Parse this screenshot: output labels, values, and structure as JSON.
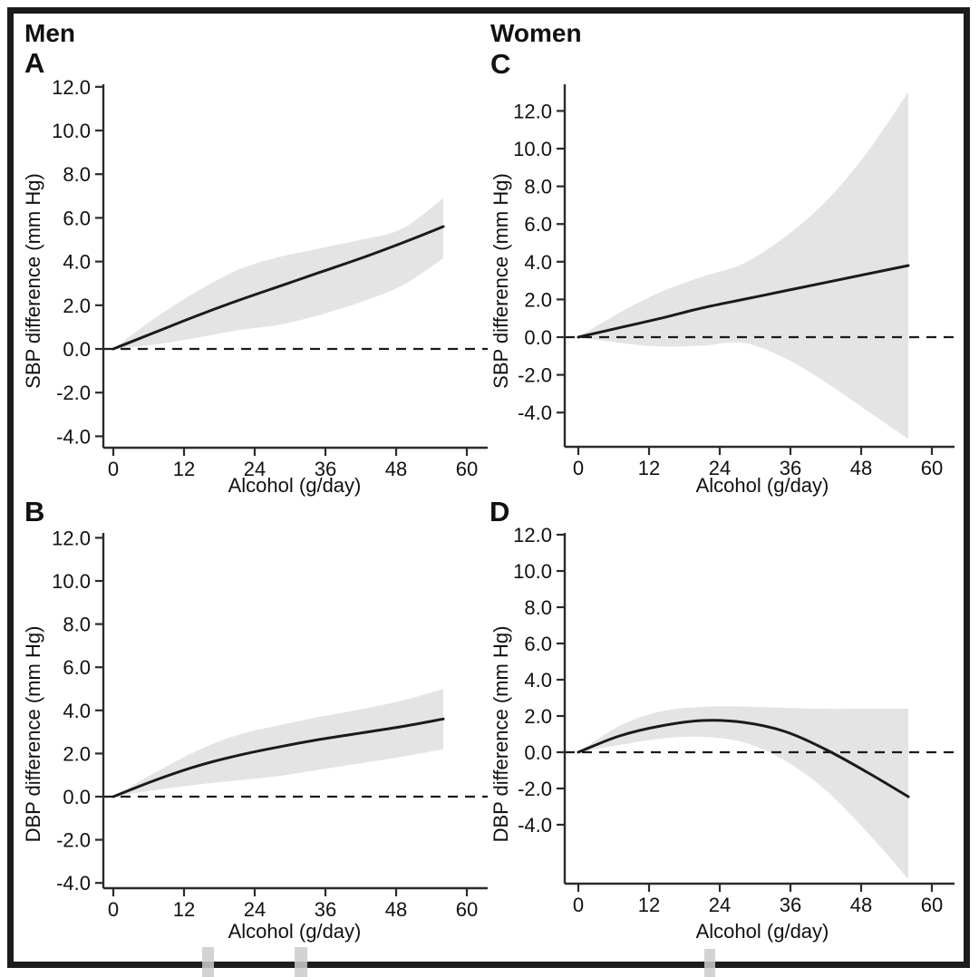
{
  "header": {
    "left": "Men",
    "right": "Women"
  },
  "colors": {
    "curve": "#1a1a1a",
    "band": "#e4e4e4",
    "axis": "#2b2b2b",
    "text": "#111111",
    "border": "#1c1c1c",
    "artifact_mark": "#cbcbcb"
  },
  "chart_data": [
    {
      "panel": "A",
      "group": "Men",
      "type": "line",
      "position": "top-left",
      "xlabel": "Alcohol (g/day)",
      "ylabel": "SBP difference (mm Hg)",
      "x": [
        0,
        7,
        14,
        21,
        28,
        35,
        42,
        49,
        56
      ],
      "line": [
        0,
        0.75,
        1.5,
        2.2,
        2.85,
        3.5,
        4.15,
        4.85,
        5.6
      ],
      "ci_upper": [
        0,
        1.4,
        2.6,
        3.6,
        4.2,
        4.6,
        5.0,
        5.5,
        6.9
      ],
      "ci_lower": [
        0,
        0.2,
        0.5,
        0.85,
        1.1,
        1.55,
        2.15,
        2.9,
        4.15
      ],
      "xtick_values": [
        0,
        12,
        24,
        36,
        48,
        60
      ],
      "xtick_labels": [
        "0",
        "12",
        "24",
        "36",
        "48",
        "60"
      ],
      "ytick_values": [
        12,
        10,
        8,
        6,
        4,
        2,
        0,
        -2,
        -4
      ],
      "ytick_labels": [
        "12.0",
        "10.0",
        "8.0",
        "6.0",
        "4.0",
        "2.0",
        "0.0",
        "-2.0",
        "-4.0"
      ],
      "zero_reference": 0,
      "xlim": [
        -1.8,
        64
      ],
      "ylim": [
        -4.5,
        12.1
      ],
      "grid": false,
      "legend": false
    },
    {
      "panel": "B",
      "group": "Men",
      "type": "line",
      "position": "bottom-left",
      "xlabel": "Alcohol (g/day)",
      "ylabel": "DBP difference (mm Hg)",
      "x": [
        0,
        7,
        14,
        21,
        28,
        35,
        42,
        49,
        56
      ],
      "line": [
        0,
        0.75,
        1.4,
        1.9,
        2.3,
        2.65,
        2.95,
        3.25,
        3.6
      ],
      "ci_upper": [
        0,
        1.1,
        2.1,
        2.85,
        3.3,
        3.7,
        4.05,
        4.45,
        5.0
      ],
      "ci_lower": [
        0,
        0.3,
        0.55,
        0.75,
        0.95,
        1.25,
        1.55,
        1.85,
        2.2
      ],
      "xtick_values": [
        0,
        12,
        24,
        36,
        48,
        60
      ],
      "xtick_labels": [
        "0",
        "12",
        "24",
        "36",
        "48",
        "60"
      ],
      "ytick_values": [
        12,
        10,
        8,
        6,
        4,
        2,
        0,
        -2,
        -4
      ],
      "ytick_labels": [
        "12.0",
        "10.0",
        "8.0",
        "6.0",
        "4.0",
        "2.0",
        "0.0",
        "-2.0",
        "-4.0"
      ],
      "zero_reference": 0,
      "xlim": [
        -1.8,
        64
      ],
      "ylim": [
        -4.2,
        12.2
      ],
      "grid": false,
      "legend": false
    },
    {
      "panel": "C",
      "group": "Women",
      "type": "line",
      "position": "top-right",
      "xlabel": "Alcohol (g/day)",
      "ylabel": "SBP difference (mm Hg)",
      "x": [
        0,
        7,
        14,
        21,
        28,
        35,
        42,
        49,
        56
      ],
      "line": [
        0,
        0.5,
        1.0,
        1.55,
        2.0,
        2.45,
        2.9,
        3.35,
        3.8
      ],
      "ci_upper": [
        0,
        1.3,
        2.4,
        3.2,
        3.9,
        5.3,
        7.2,
        9.8,
        13.0
      ],
      "ci_lower": [
        0,
        -0.3,
        -0.5,
        -0.45,
        -0.3,
        -1.1,
        -2.4,
        -3.9,
        -5.4
      ],
      "xtick_values": [
        0,
        12,
        24,
        36,
        48,
        60
      ],
      "xtick_labels": [
        "0",
        "12",
        "24",
        "36",
        "48",
        "60"
      ],
      "ytick_values": [
        12,
        10,
        8,
        6,
        4,
        2,
        0,
        -2,
        -4
      ],
      "ytick_labels": [
        "12.0",
        "10.0",
        "8.0",
        "6.0",
        "4.0",
        "2.0",
        "0.0",
        "-2.0",
        "-4.0"
      ],
      "zero_reference": 0,
      "xlim": [
        -1.8,
        64
      ],
      "ylim": [
        -5.8,
        13.4
      ],
      "grid": false,
      "legend": false
    },
    {
      "panel": "D",
      "group": "Women",
      "type": "line",
      "position": "bottom-right",
      "xlabel": "Alcohol (g/day)",
      "ylabel": "DBP difference (mm Hg)",
      "x": [
        0,
        7,
        14,
        21,
        28,
        35,
        42,
        49,
        56
      ],
      "line": [
        0,
        0.9,
        1.45,
        1.75,
        1.65,
        1.15,
        0.15,
        -1.1,
        -2.45
      ],
      "ci_upper": [
        0,
        1.45,
        2.25,
        2.5,
        2.52,
        2.45,
        2.4,
        2.4,
        2.4
      ],
      "ci_lower": [
        0,
        0.4,
        0.75,
        0.85,
        0.55,
        -0.45,
        -2.1,
        -4.4,
        -7.0
      ],
      "xtick_values": [
        0,
        12,
        24,
        36,
        48,
        60
      ],
      "xtick_labels": [
        "0",
        "12",
        "24",
        "36",
        "48",
        "60"
      ],
      "ytick_values": [
        12,
        10,
        8,
        6,
        4,
        2,
        0,
        -2,
        -4
      ],
      "ytick_labels": [
        "12.0",
        "10.0",
        "8.0",
        "6.0",
        "4.0",
        "2.0",
        "0.0",
        "-2.0",
        "-4.0"
      ],
      "zero_reference": 0,
      "xlim": [
        -1.8,
        64
      ],
      "ylim": [
        -7.25,
        12.0
      ],
      "grid": false,
      "legend": false
    }
  ]
}
